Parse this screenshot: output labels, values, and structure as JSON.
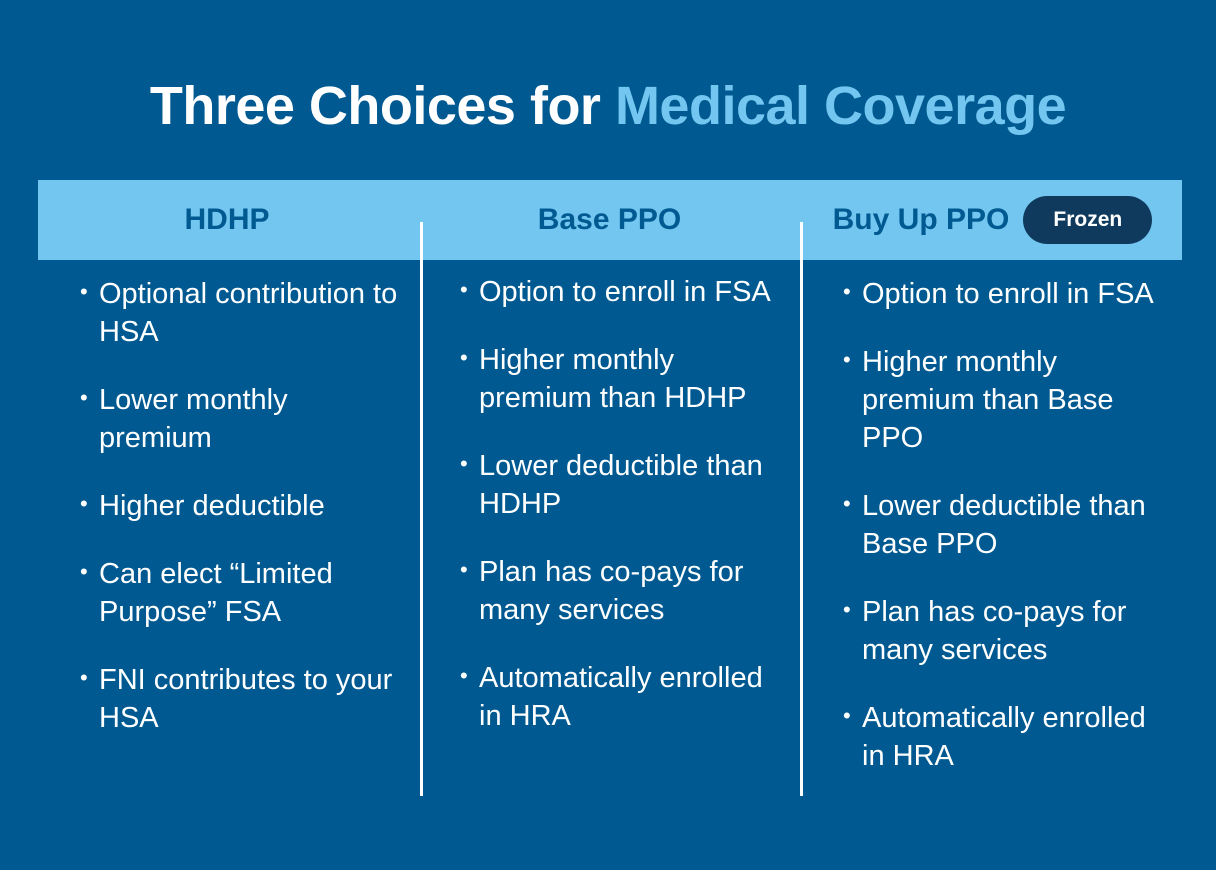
{
  "title": {
    "part1": "Three Choices for ",
    "part2": "Medical Coverage"
  },
  "columns": [
    {
      "header": "HDHP",
      "items": [
        "Optional contribution to HSA",
        "Lower monthly premium",
        "Higher deductible",
        "Can elect “Limited Purpose” FSA",
        "FNI contributes to your HSA"
      ]
    },
    {
      "header": "Base PPO",
      "items": [
        "Option to enroll in FSA",
        "Higher monthly premium than HDHP",
        "Lower deductible than HDHP",
        "Plan has co-pays for many services",
        "Automatically enrolled in HRA"
      ]
    },
    {
      "header": "Buy Up PPO",
      "badge": "Frozen",
      "items": [
        "Option to enroll in FSA",
        "Higher monthly premium than Base PPO",
        "Lower deductible than Base PPO",
        "Plan has co-pays for many services",
        "Automatically enrolled in HRA"
      ]
    }
  ],
  "colors": {
    "background": "#005a91",
    "accent": "#72c6ef",
    "badge": "#0f3a5e"
  }
}
